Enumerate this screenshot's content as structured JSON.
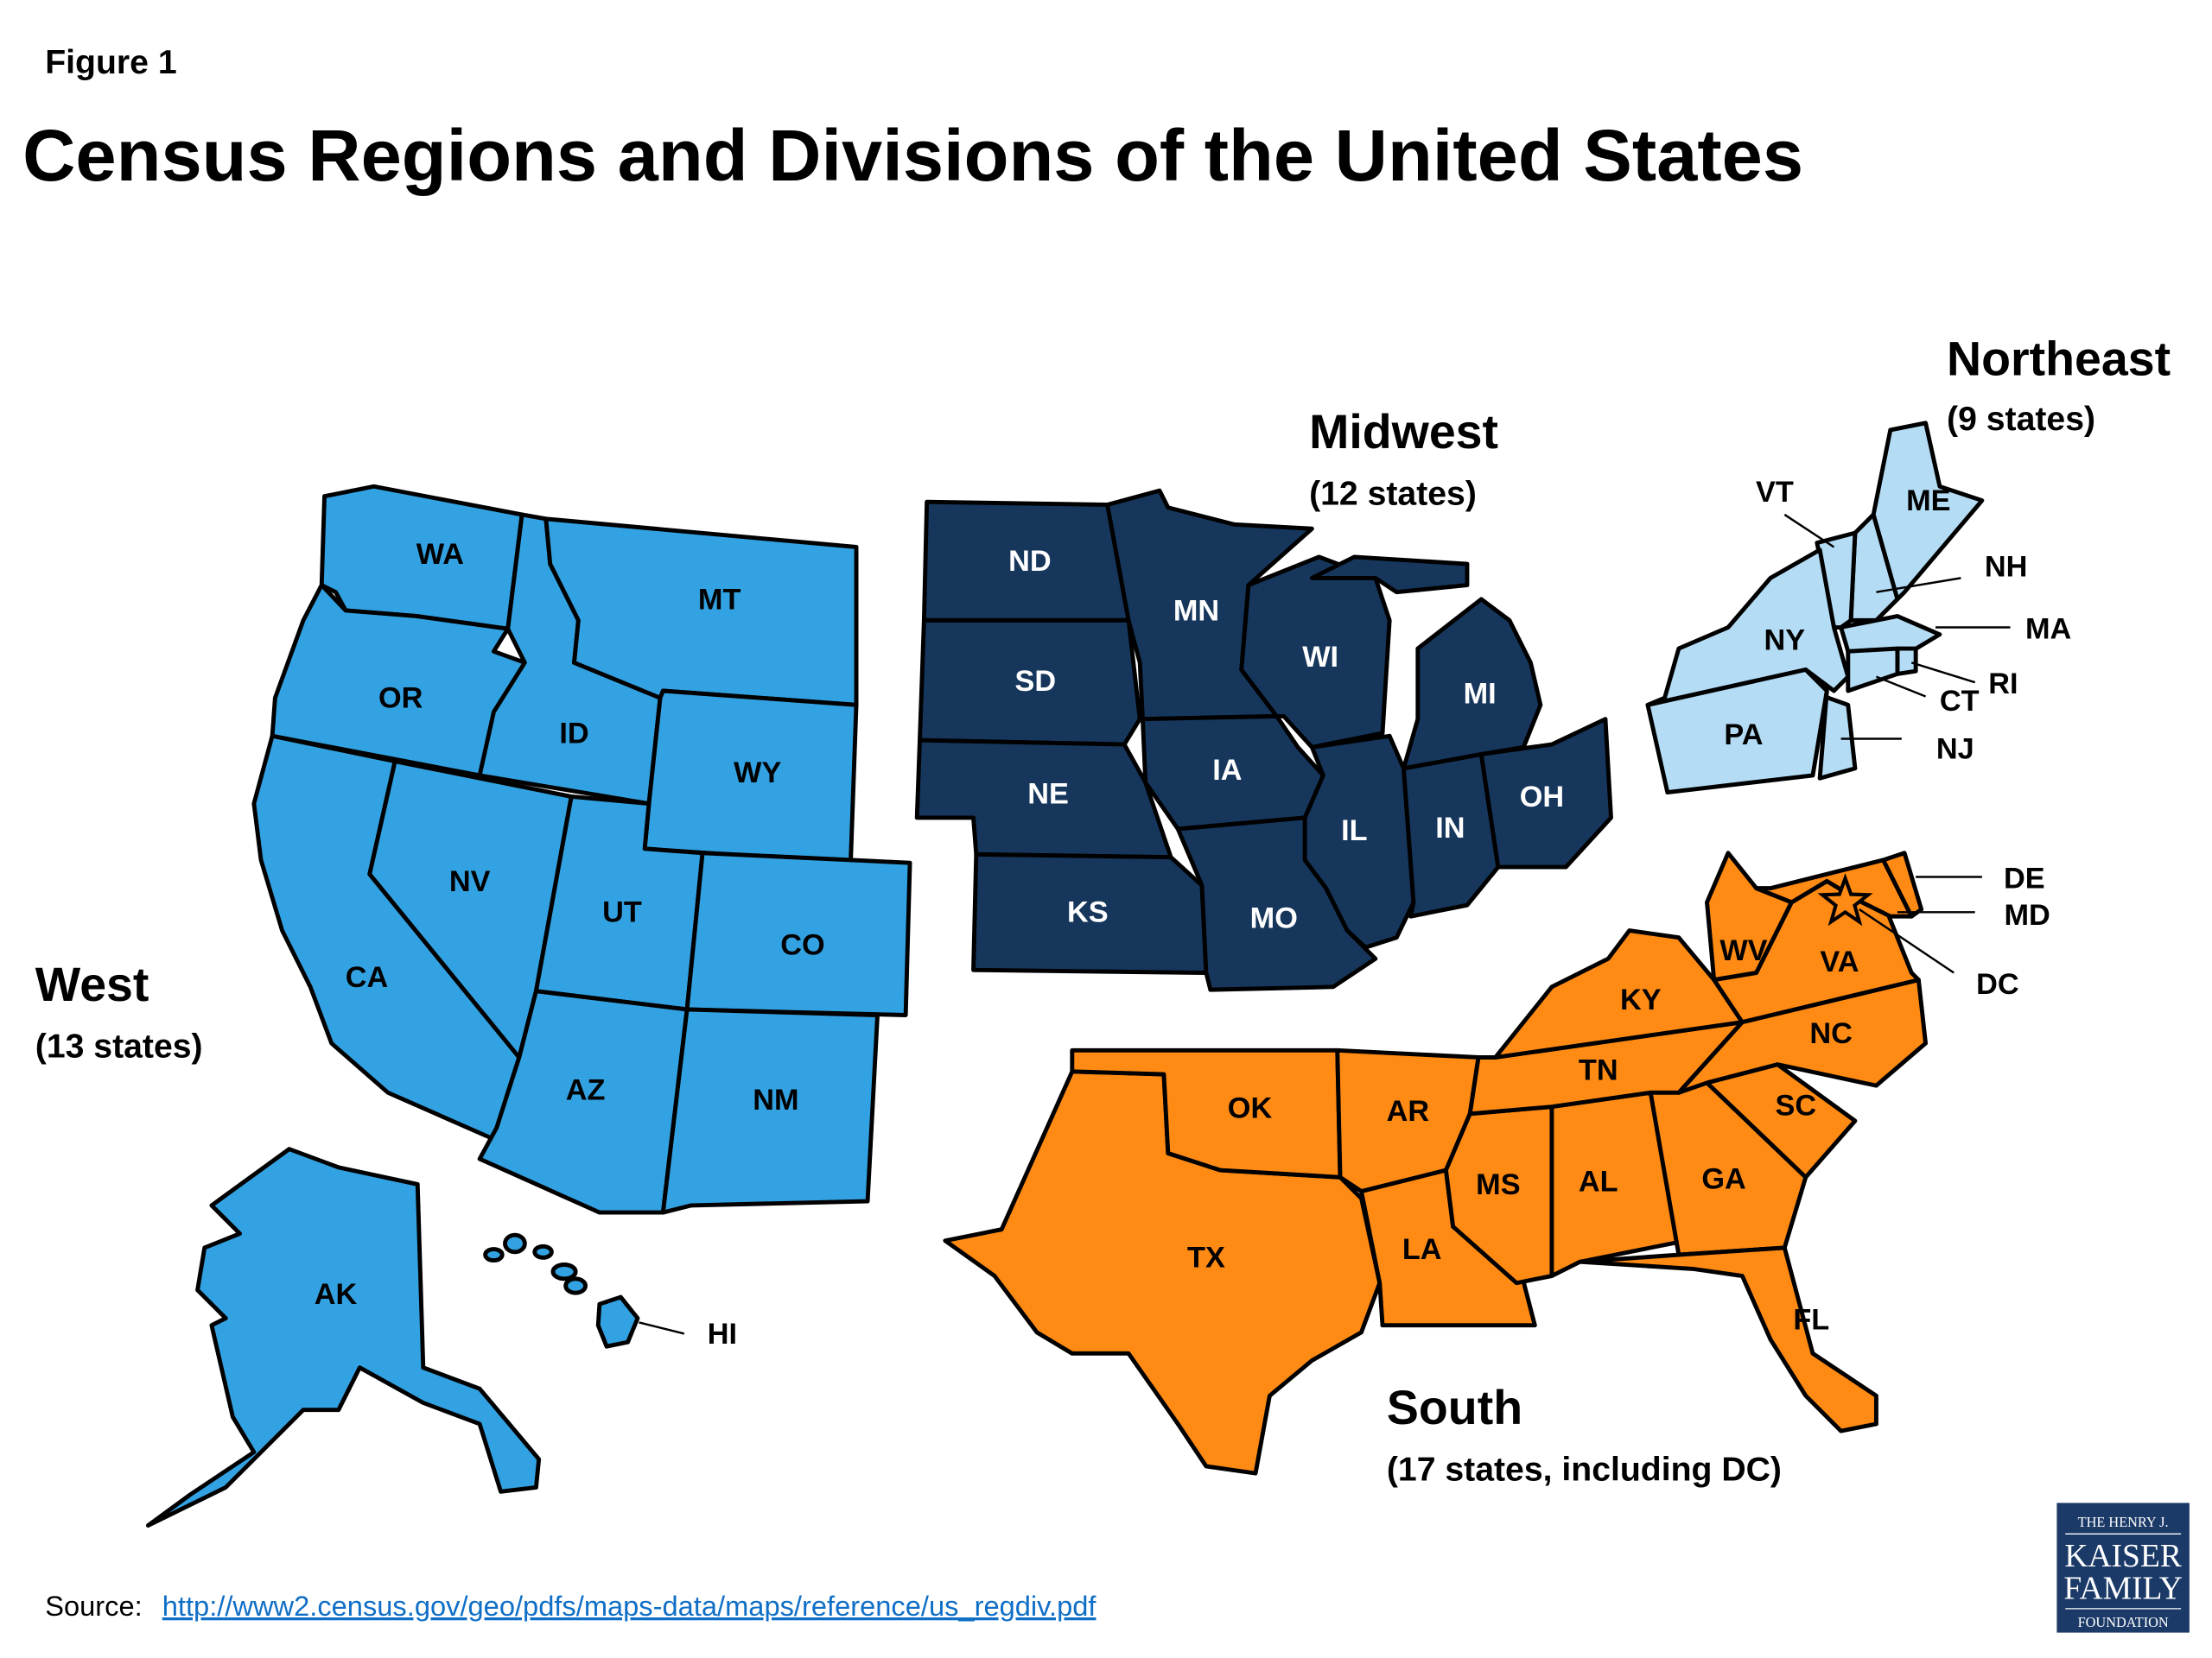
{
  "figure_label": "Figure 1",
  "title": "Census Regions and Divisions of the United States",
  "regions": [
    {
      "name": "West",
      "count": "(13 states)",
      "color": "#33a2e2",
      "states": [
        "WA",
        "OR",
        "ID",
        "MT",
        "WY",
        "CA",
        "NV",
        "UT",
        "CO",
        "AZ",
        "NM",
        "AK",
        "HI"
      ]
    },
    {
      "name": "Midwest",
      "count": "(12 states)",
      "color": "#16365c",
      "states": [
        "ND",
        "SD",
        "NE",
        "KS",
        "MN",
        "IA",
        "MO",
        "WI",
        "IL",
        "IN",
        "MI",
        "OH"
      ]
    },
    {
      "name": "Northeast",
      "count": "(9 states)",
      "color": "#b4dcf4",
      "states": [
        "ME",
        "NH",
        "VT",
        "MA",
        "RI",
        "CT",
        "NY",
        "NJ",
        "PA"
      ]
    },
    {
      "name": "South",
      "count": "(17 states, including DC)",
      "color": "#ff8a14",
      "states": [
        "TX",
        "OK",
        "AR",
        "LA",
        "MS",
        "AL",
        "GA",
        "FL",
        "SC",
        "NC",
        "TN",
        "KY",
        "WV",
        "VA",
        "MD",
        "DE",
        "DC"
      ]
    }
  ],
  "source": {
    "label": "Source:",
    "url": "http://www2.census.gov/geo/pdfs/maps-data/maps/reference/us_regdiv.pdf"
  },
  "logo": {
    "line1": "THE HENRY J.",
    "line2": "KAISER",
    "line3": "FAMILY",
    "line4": "FOUNDATION",
    "color": "#1b3a68"
  }
}
